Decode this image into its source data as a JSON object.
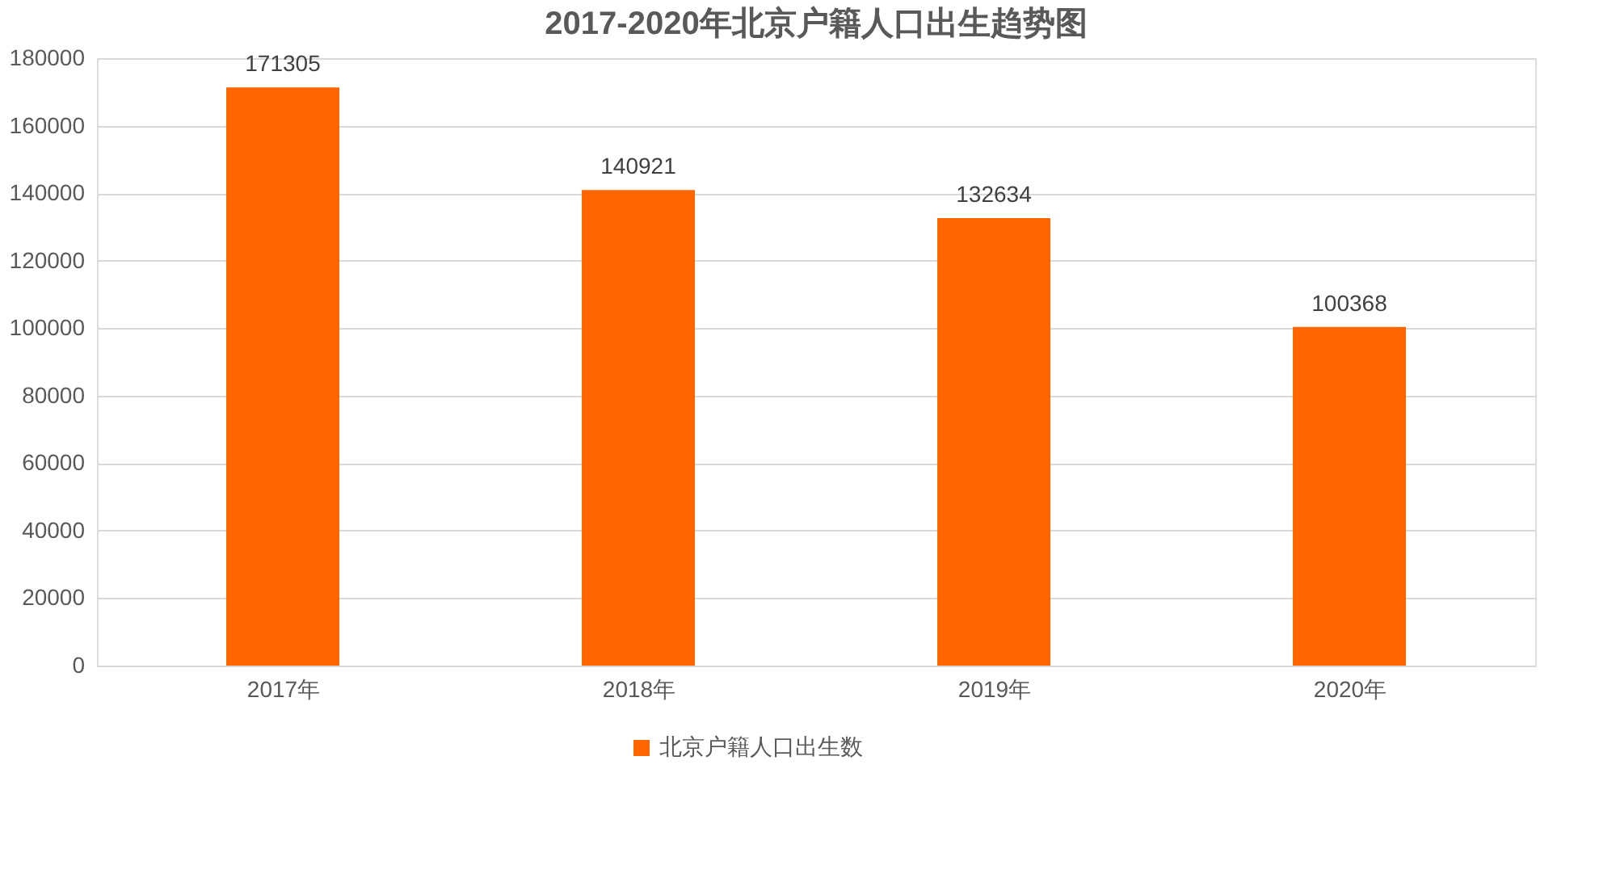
{
  "chart_data": {
    "type": "bar",
    "title": "2017-2020年北京户籍人口出生趋势图",
    "categories": [
      "2017年",
      "2018年",
      "2019年",
      "2020年"
    ],
    "series": [
      {
        "name": "北京户籍人口出生数",
        "color": "#ff6600",
        "values": [
          171305,
          140921,
          132634,
          100368
        ]
      }
    ],
    "ylim": [
      0,
      180000
    ],
    "yticks": [
      0,
      20000,
      40000,
      60000,
      80000,
      100000,
      120000,
      140000,
      160000,
      180000
    ],
    "grid": "y",
    "legend": "bottom",
    "data_labels": true
  }
}
